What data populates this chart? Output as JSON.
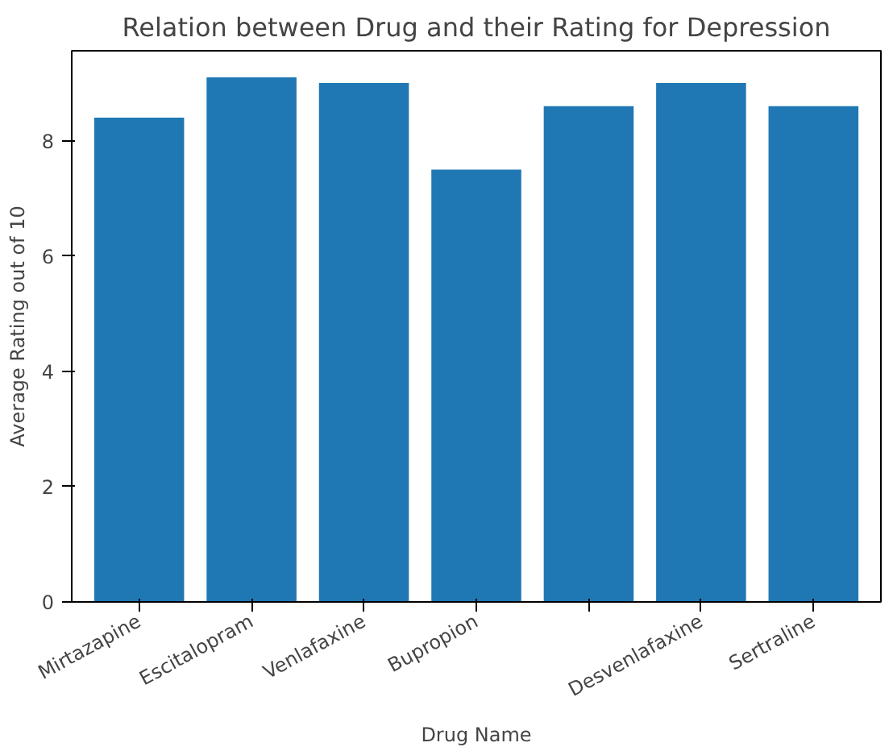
{
  "chart_data": {
    "type": "bar",
    "title": "Relation between Drug and their Rating for Depression",
    "xlabel": "Drug Name",
    "ylabel": "Average Rating out of 10",
    "categories": [
      "Mirtazapine",
      "Escitalopram",
      "Venlafaxine",
      "Bupropion",
      null,
      "Desvenlafaxine",
      "Sertraline"
    ],
    "values": [
      8.4,
      9.1,
      9.0,
      7.5,
      8.6,
      9.0,
      8.6
    ],
    "color": "#1f77b4",
    "ylim": [
      0,
      9.56
    ],
    "yticks": [
      0,
      2,
      4,
      6,
      8
    ],
    "grid": false
  }
}
